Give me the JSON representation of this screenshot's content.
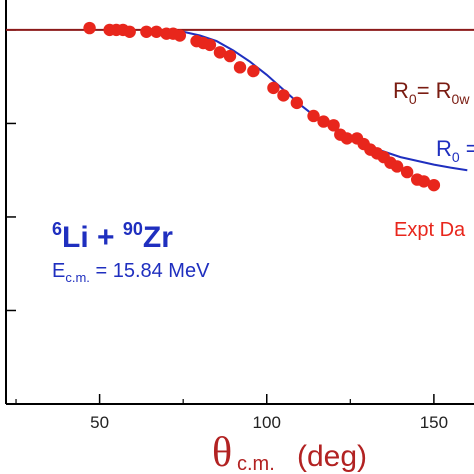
{
  "chart_data": {
    "type": "scatter",
    "title": "",
    "xlabel": {
      "symbol": "θ",
      "subscript": "c.m.",
      "unit": "(deg)"
    },
    "xlim": [
      22,
      162
    ],
    "x_ticks": [
      50,
      100,
      150
    ],
    "x_tick_labels": [
      "50",
      "100",
      "150"
    ],
    "y_range_visible": [
      0.0,
      1.08
    ],
    "y_ticks": [
      1.0,
      0.75,
      0.5,
      0.25
    ],
    "y_tick_labels": [
      "",
      "",
      "",
      ""
    ],
    "grid": false,
    "annotations": {
      "system": {
        "mass_a": "6",
        "elem_a": "Li + ",
        "mass_b": "90",
        "elem_b": "Zr"
      },
      "energy": {
        "symbol": "E",
        "subscript": "c.m.",
        "text": " = 15.84 MeV"
      },
      "line_label_1": {
        "main": "R",
        "sub": "0",
        "rest": "= R",
        "sub2": "0w"
      },
      "line_label_2": {
        "main": "R",
        "sub": "0",
        "rest": " ="
      },
      "data_label": "Expt Da"
    },
    "series": [
      {
        "kind": "line",
        "color": "#8b1a1a",
        "x": [
          22,
          162
        ],
        "y": [
          1.0,
          1.0
        ]
      },
      {
        "kind": "line",
        "color": "#1f2fbf",
        "x": [
          70,
          75,
          80,
          85,
          90,
          95,
          100,
          105,
          110,
          115,
          120,
          125,
          130,
          135,
          140,
          145,
          150,
          155,
          160
        ],
        "y": [
          1.0,
          0.995,
          0.985,
          0.97,
          0.945,
          0.915,
          0.88,
          0.84,
          0.8,
          0.765,
          0.735,
          0.71,
          0.69,
          0.675,
          0.66,
          0.65,
          0.64,
          0.632,
          0.625
        ]
      },
      {
        "kind": "points",
        "color": "#e8261c",
        "x": [
          47,
          53,
          55,
          57,
          59,
          64,
          67,
          70,
          72,
          74,
          79,
          81,
          83,
          86,
          89,
          92,
          96,
          102,
          105,
          109,
          114,
          117,
          120,
          122,
          124,
          127,
          129,
          131,
          133,
          135,
          137,
          139,
          142,
          145,
          147,
          150
        ],
        "y": [
          1.005,
          1.0,
          1.0,
          1.0,
          0.995,
          0.995,
          0.995,
          0.99,
          0.99,
          0.985,
          0.97,
          0.965,
          0.96,
          0.94,
          0.93,
          0.9,
          0.89,
          0.845,
          0.825,
          0.805,
          0.77,
          0.755,
          0.745,
          0.72,
          0.71,
          0.71,
          0.695,
          0.68,
          0.67,
          0.66,
          0.645,
          0.635,
          0.62,
          0.6,
          0.595,
          0.585
        ]
      }
    ]
  }
}
